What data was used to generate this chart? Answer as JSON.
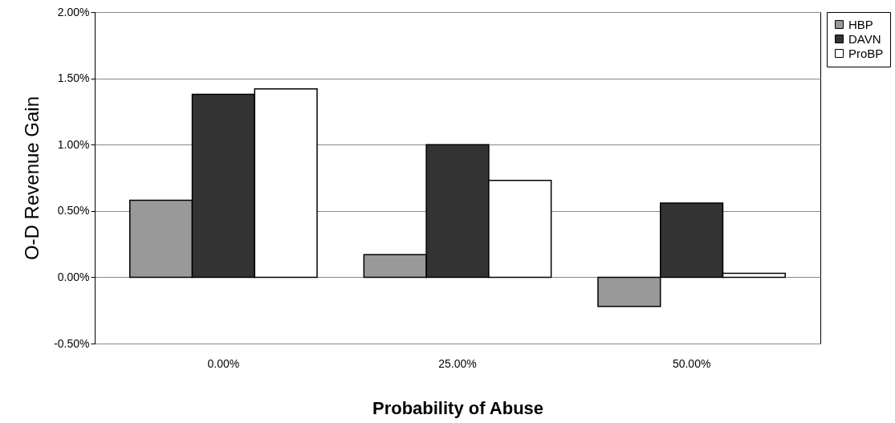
{
  "chart_data": {
    "type": "bar",
    "xlabel": "Probability of Abuse",
    "ylabel": "O-D Revenue Gain",
    "categories": [
      "0.00%",
      "25.00%",
      "50.00%"
    ],
    "series": [
      {
        "name": "HBP",
        "color": "#999999",
        "values": [
          0.58,
          0.17,
          -0.22
        ]
      },
      {
        "name": "DAVN",
        "color": "#333333",
        "values": [
          1.38,
          1.0,
          0.56
        ]
      },
      {
        "name": "ProBP",
        "color": "#ffffff",
        "values": [
          1.42,
          0.73,
          0.03
        ]
      }
    ],
    "ylim": [
      -0.5,
      2
    ],
    "yticks": [
      {
        "value": -0.5,
        "label": "-0.50%"
      },
      {
        "value": 0,
        "label": "0.00%"
      },
      {
        "value": 0.5,
        "label": "0.50%"
      },
      {
        "value": 1,
        "label": "1.00%"
      },
      {
        "value": 1.5,
        "label": "1.50%"
      },
      {
        "value": 2,
        "label": "2.00%"
      }
    ],
    "grid": "y",
    "legend": "right"
  }
}
